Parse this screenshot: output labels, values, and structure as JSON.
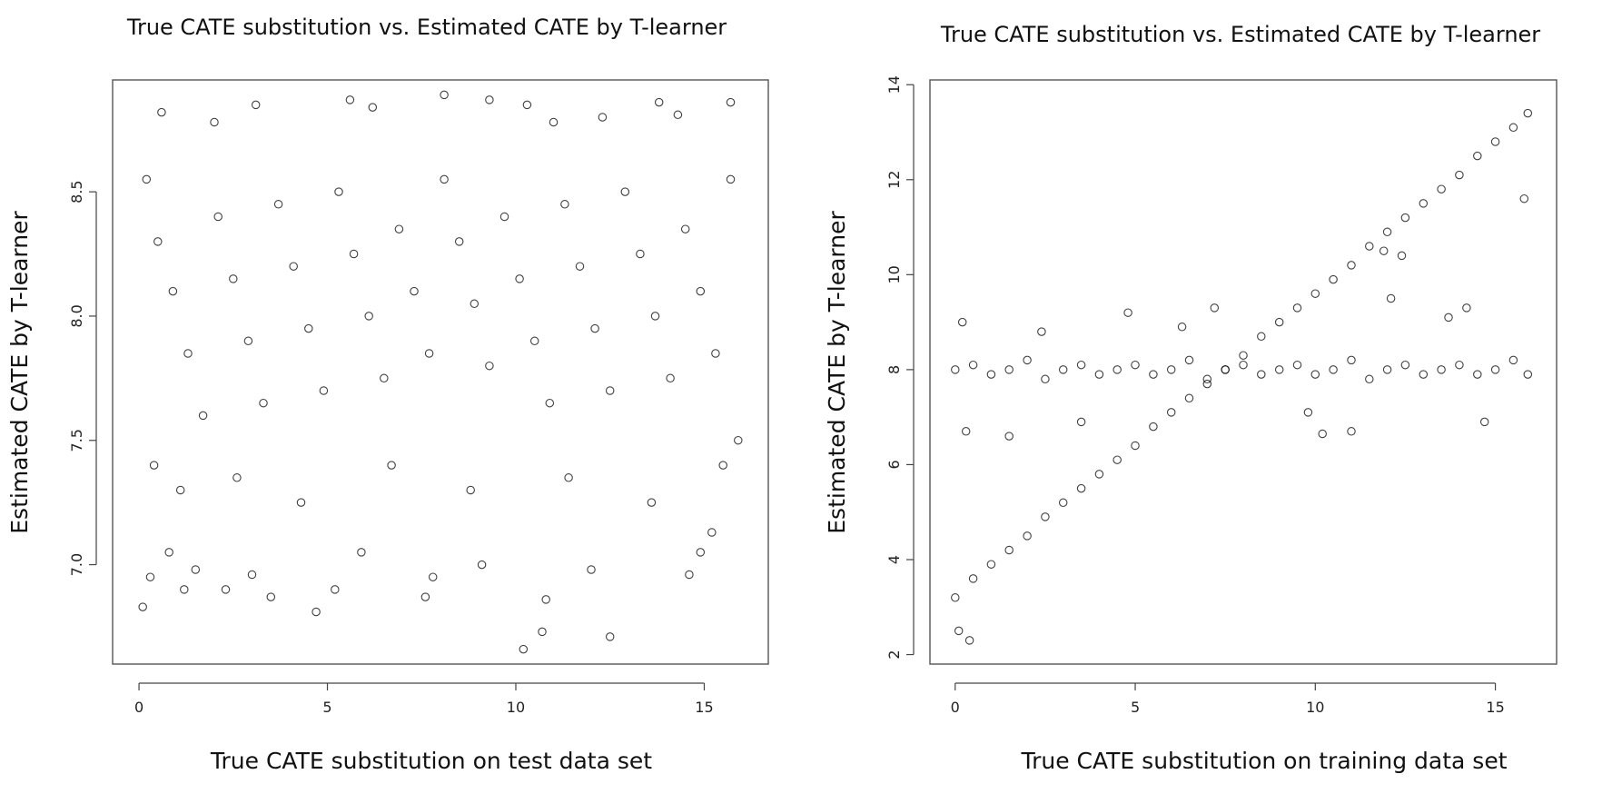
{
  "chart_data": [
    {
      "type": "scatter",
      "title": "True CATE substitution vs. Estimated CATE by T-learner",
      "xlabel": "True CATE substitution on test data set",
      "ylabel": "Estimated CATE by T-learner",
      "xlim": [
        -0.7,
        16.7
      ],
      "ylim": [
        6.6,
        8.95
      ],
      "xticks": [
        0,
        5,
        10,
        15
      ],
      "yticks": [
        7.0,
        7.5,
        8.0,
        8.5
      ],
      "ytick_labels": [
        "7.0",
        "7.5",
        "8.0",
        "8.5"
      ],
      "grid": false,
      "marker": "open-circle",
      "color": "#000000",
      "series": [
        {
          "points": [
            [
              0.1,
              6.83
            ],
            [
              0.3,
              6.95
            ],
            [
              0.8,
              7.05
            ],
            [
              1.2,
              6.9
            ],
            [
              1.5,
              6.98
            ],
            [
              2.3,
              6.9
            ],
            [
              3.0,
              6.96
            ],
            [
              3.5,
              6.87
            ],
            [
              4.7,
              6.81
            ],
            [
              5.2,
              6.9
            ],
            [
              5.9,
              7.05
            ],
            [
              7.6,
              6.87
            ],
            [
              7.8,
              6.95
            ],
            [
              9.1,
              7.0
            ],
            [
              10.2,
              6.66
            ],
            [
              10.7,
              6.73
            ],
            [
              10.8,
              6.86
            ],
            [
              12.0,
              6.98
            ],
            [
              12.5,
              6.71
            ],
            [
              14.6,
              6.96
            ],
            [
              14.9,
              7.05
            ],
            [
              15.2,
              7.13
            ],
            [
              2.0,
              8.78
            ],
            [
              3.1,
              8.85
            ],
            [
              5.6,
              8.87
            ],
            [
              8.1,
              8.89
            ],
            [
              9.3,
              8.87
            ],
            [
              12.3,
              8.8
            ],
            [
              13.8,
              8.86
            ],
            [
              15.7,
              8.86
            ],
            [
              0.6,
              8.82
            ],
            [
              6.2,
              8.84
            ],
            [
              10.3,
              8.85
            ],
            [
              11.0,
              8.78
            ],
            [
              14.3,
              8.81
            ],
            [
              0.2,
              8.55
            ],
            [
              0.5,
              8.3
            ],
            [
              0.9,
              8.1
            ],
            [
              1.3,
              7.85
            ],
            [
              1.7,
              7.6
            ],
            [
              2.1,
              8.4
            ],
            [
              2.5,
              8.15
            ],
            [
              2.9,
              7.9
            ],
            [
              3.3,
              7.65
            ],
            [
              3.7,
              8.45
            ],
            [
              4.1,
              8.2
            ],
            [
              4.5,
              7.95
            ],
            [
              4.9,
              7.7
            ],
            [
              5.3,
              8.5
            ],
            [
              5.7,
              8.25
            ],
            [
              6.1,
              8.0
            ],
            [
              6.5,
              7.75
            ],
            [
              6.9,
              8.35
            ],
            [
              7.3,
              8.1
            ],
            [
              7.7,
              7.85
            ],
            [
              8.1,
              8.55
            ],
            [
              8.5,
              8.3
            ],
            [
              8.9,
              8.05
            ],
            [
              9.3,
              7.8
            ],
            [
              9.7,
              8.4
            ],
            [
              10.1,
              8.15
            ],
            [
              10.5,
              7.9
            ],
            [
              10.9,
              7.65
            ],
            [
              11.3,
              8.45
            ],
            [
              11.7,
              8.2
            ],
            [
              12.1,
              7.95
            ],
            [
              12.5,
              7.7
            ],
            [
              12.9,
              8.5
            ],
            [
              13.3,
              8.25
            ],
            [
              13.7,
              8.0
            ],
            [
              14.1,
              7.75
            ],
            [
              14.5,
              8.35
            ],
            [
              14.9,
              8.1
            ],
            [
              15.3,
              7.85
            ],
            [
              15.7,
              8.55
            ],
            [
              15.9,
              7.5
            ],
            [
              0.4,
              7.4
            ],
            [
              1.1,
              7.3
            ],
            [
              2.6,
              7.35
            ],
            [
              4.3,
              7.25
            ],
            [
              6.7,
              7.4
            ],
            [
              8.8,
              7.3
            ],
            [
              11.4,
              7.35
            ],
            [
              13.6,
              7.25
            ],
            [
              15.5,
              7.4
            ]
          ]
        }
      ]
    },
    {
      "type": "scatter",
      "title": "True CATE substitution vs. Estimated CATE by T-learner",
      "xlabel": "True CATE substitution on training data set",
      "ylabel": "Estimated CATE by T-learner",
      "xlim": [
        -0.7,
        16.7
      ],
      "ylim": [
        1.8,
        14.1
      ],
      "xticks": [
        0,
        5,
        10,
        15
      ],
      "yticks": [
        2,
        4,
        6,
        8,
        10,
        12,
        14
      ],
      "ytick_labels": [
        "2",
        "4",
        "6",
        "8",
        "10",
        "12",
        "14"
      ],
      "grid": false,
      "marker": "open-circle",
      "color": "#000000",
      "series": [
        {
          "points": [
            [
              0.0,
              3.2
            ],
            [
              0.5,
              3.6
            ],
            [
              1.0,
              3.9
            ],
            [
              1.5,
              4.2
            ],
            [
              2.0,
              4.5
            ],
            [
              2.5,
              4.9
            ],
            [
              3.0,
              5.2
            ],
            [
              3.5,
              5.5
            ],
            [
              4.0,
              5.8
            ],
            [
              4.5,
              6.1
            ],
            [
              5.0,
              6.4
            ],
            [
              5.5,
              6.8
            ],
            [
              6.0,
              7.1
            ],
            [
              6.5,
              7.4
            ],
            [
              7.0,
              7.7
            ],
            [
              7.5,
              8.0
            ],
            [
              8.0,
              8.3
            ],
            [
              8.5,
              8.7
            ],
            [
              9.0,
              9.0
            ],
            [
              9.5,
              9.3
            ],
            [
              10.0,
              9.6
            ],
            [
              10.5,
              9.9
            ],
            [
              11.0,
              10.2
            ],
            [
              11.5,
              10.6
            ],
            [
              12.0,
              10.9
            ],
            [
              12.5,
              11.2
            ],
            [
              13.0,
              11.5
            ],
            [
              13.5,
              11.8
            ],
            [
              14.0,
              12.1
            ],
            [
              14.5,
              12.5
            ],
            [
              15.0,
              12.8
            ],
            [
              15.5,
              13.1
            ],
            [
              15.9,
              13.4
            ],
            [
              0.0,
              8.0
            ],
            [
              0.5,
              8.1
            ],
            [
              1.0,
              7.9
            ],
            [
              1.5,
              8.0
            ],
            [
              2.0,
              8.2
            ],
            [
              2.5,
              7.8
            ],
            [
              3.0,
              8.0
            ],
            [
              3.5,
              8.1
            ],
            [
              4.0,
              7.9
            ],
            [
              4.5,
              8.0
            ],
            [
              5.0,
              8.1
            ],
            [
              5.5,
              7.9
            ],
            [
              6.0,
              8.0
            ],
            [
              6.5,
              8.2
            ],
            [
              7.0,
              7.8
            ],
            [
              7.5,
              8.0
            ],
            [
              8.0,
              8.1
            ],
            [
              8.5,
              7.9
            ],
            [
              9.0,
              8.0
            ],
            [
              9.5,
              8.1
            ],
            [
              10.0,
              7.9
            ],
            [
              10.5,
              8.0
            ],
            [
              11.0,
              8.2
            ],
            [
              11.5,
              7.8
            ],
            [
              12.0,
              8.0
            ],
            [
              12.5,
              8.1
            ],
            [
              13.0,
              7.9
            ],
            [
              13.5,
              8.0
            ],
            [
              14.0,
              8.1
            ],
            [
              14.5,
              7.9
            ],
            [
              15.0,
              8.0
            ],
            [
              15.5,
              8.2
            ],
            [
              15.9,
              7.9
            ],
            [
              0.4,
              2.3
            ],
            [
              0.1,
              2.5
            ],
            [
              0.2,
              9.0
            ],
            [
              1.5,
              6.6
            ],
            [
              3.5,
              6.9
            ],
            [
              4.8,
              9.2
            ],
            [
              7.2,
              9.3
            ],
            [
              10.2,
              6.65
            ],
            [
              11.0,
              6.7
            ],
            [
              12.1,
              9.5
            ],
            [
              13.7,
              9.1
            ],
            [
              14.7,
              6.9
            ],
            [
              15.8,
              11.6
            ],
            [
              11.9,
              10.5
            ],
            [
              12.4,
              10.4
            ],
            [
              14.2,
              9.3
            ],
            [
              0.3,
              6.7
            ],
            [
              2.4,
              8.8
            ],
            [
              6.3,
              8.9
            ],
            [
              9.8,
              7.1
            ]
          ]
        }
      ]
    }
  ]
}
